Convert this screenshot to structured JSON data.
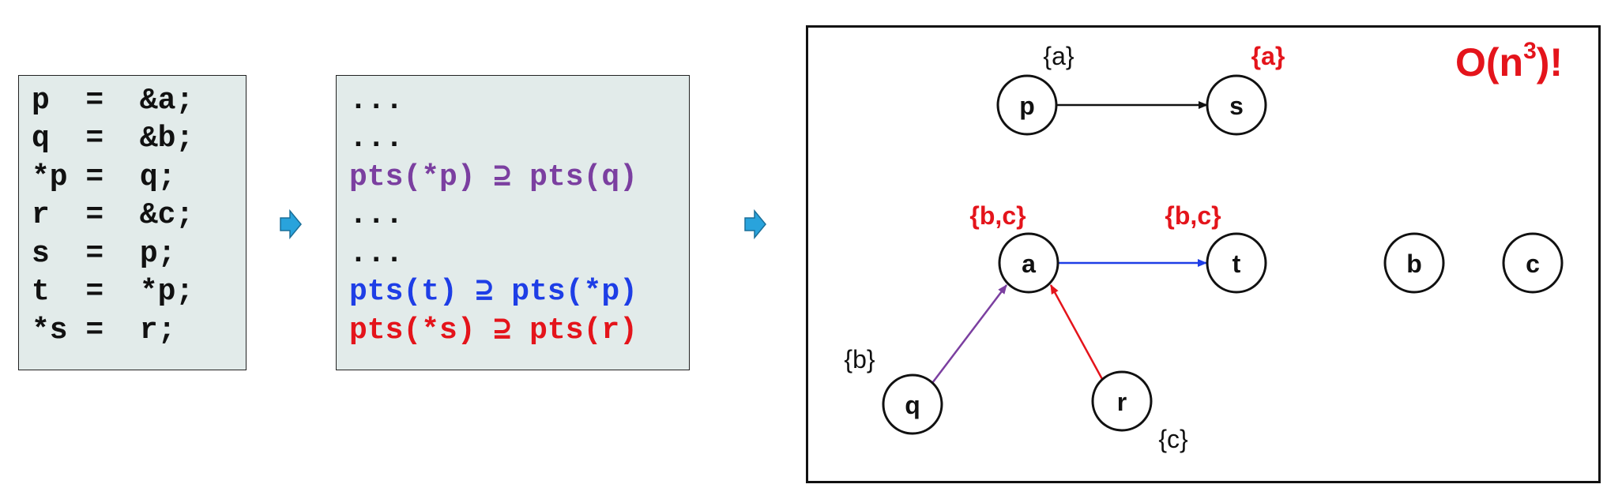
{
  "code": {
    "lines": [
      "p  =  &a;",
      "q  =  &b;",
      "*p =  q;",
      "r  =  &c;",
      "s  =  p;",
      "t  =  *p;",
      "*s =  r;"
    ]
  },
  "constraints": {
    "lines": [
      {
        "text": "...",
        "color": "#111111"
      },
      {
        "text": "...",
        "color": "#111111"
      },
      {
        "text": "pts(*p) ⊇ pts(q)",
        "color": "#7b3fa0"
      },
      {
        "text": "...",
        "color": "#111111"
      },
      {
        "text": "...",
        "color": "#111111"
      },
      {
        "text": "pts(t) ⊇ pts(*p)",
        "color": "#1e3ee6"
      },
      {
        "text": "pts(*s) ⊇ pts(r)",
        "color": "#e4141b"
      }
    ]
  },
  "graph": {
    "nodes": [
      "p",
      "s",
      "a",
      "t",
      "b",
      "c",
      "q",
      "r"
    ],
    "sets": {
      "p": "{a}",
      "s": "{a}",
      "a": "{b,c}",
      "t": "{b,c}",
      "q": "{b}",
      "r": "{c}"
    },
    "edges": [
      {
        "from": "p",
        "to": "s",
        "color": "#111111"
      },
      {
        "from": "a",
        "to": "t",
        "color": "#1e3ee6"
      },
      {
        "from": "q",
        "to": "a",
        "color": "#7b3fa0"
      },
      {
        "from": "r",
        "to": "a",
        "color": "#e4141b"
      }
    ]
  },
  "complexity": {
    "prefix": "O(n",
    "exponent": "3",
    "suffix": ")!"
  },
  "colors": {
    "arrow_fill": "#29a3dc",
    "accent_red": "#e4141b",
    "purple": "#7b3fa0",
    "blue": "#1e3ee6"
  }
}
